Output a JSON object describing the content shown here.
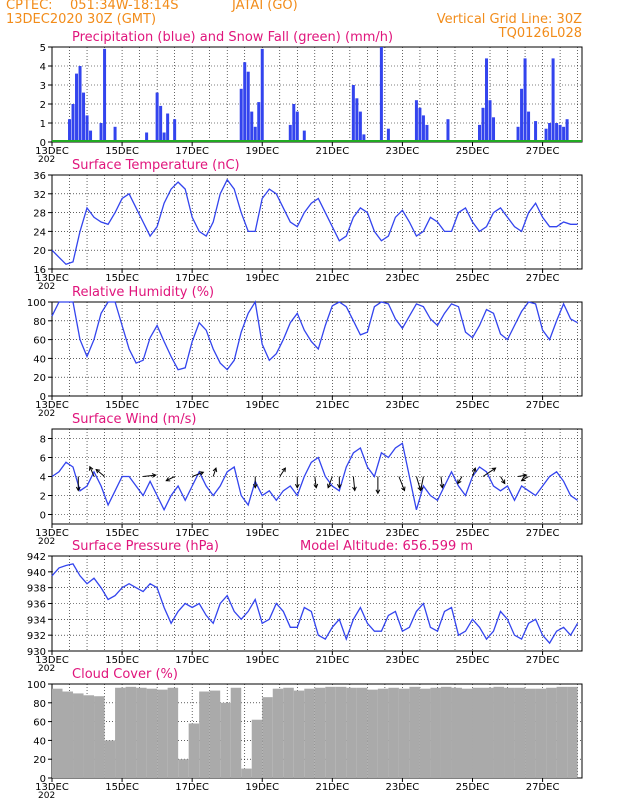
{
  "header": {
    "source": "CPTEC:",
    "coords": "051:34W-18:14S",
    "location": "JATAI (GO)",
    "date": "13DEC2020 30Z (GMT)",
    "grid_line": "Vertical Grid Line: 30Z",
    "code": "TQ0126L028",
    "year_stub": "202"
  },
  "x_ticks": [
    "13DEC",
    "15DEC",
    "17DEC",
    "19DEC",
    "21DEC",
    "23DEC",
    "25DEC",
    "27DEC"
  ],
  "x_ticks_upper": [
    "15DEC",
    "17DEC",
    "19DEC",
    "21DEC",
    "23DEC",
    "25DEC",
    "27DEC"
  ],
  "colors": {
    "series": "#3344ee",
    "snow": "#22aa22",
    "cloud": "#aaaaaa",
    "title": "#e0157c",
    "header": "#f28c1a"
  },
  "chart_data": [
    {
      "type": "bar",
      "title": "Precipitation (blue) and Snow Fall (green) (mm/h)",
      "ylim": [
        0,
        5
      ],
      "yticks": [
        "0",
        "1",
        "2",
        "3",
        "4",
        "5"
      ],
      "x_range": [
        "13DEC 00Z",
        "28DEC 03Z"
      ],
      "grid": true,
      "series": [
        {
          "name": "Precipitation",
          "color": "#3344ee",
          "x": [
            0.5,
            0.6,
            0.7,
            0.8,
            0.9,
            1.0,
            1.1,
            1.4,
            1.5,
            1.8,
            2.7,
            3.0,
            3.1,
            3.2,
            3.3,
            3.5,
            5.4,
            5.5,
            5.6,
            5.7,
            5.8,
            5.9,
            6.0,
            6.8,
            6.9,
            7.0,
            7.2,
            8.6,
            8.7,
            8.8,
            8.9,
            9.4,
            9.6,
            10.4,
            10.5,
            10.6,
            10.7,
            11.3,
            12.2,
            12.3,
            12.4,
            12.5,
            12.6,
            13.3,
            13.4,
            13.5,
            13.6,
            13.8,
            14.1,
            14.2,
            14.3,
            14.4,
            14.5,
            14.6,
            14.7
          ],
          "values": [
            1.2,
            2.0,
            3.6,
            4.0,
            2.6,
            1.4,
            0.6,
            1.0,
            4.9,
            0.8,
            0.5,
            2.6,
            1.9,
            0.5,
            1.5,
            1.2,
            2.8,
            4.2,
            3.7,
            1.6,
            0.8,
            2.1,
            4.9,
            0.9,
            2.0,
            1.6,
            0.6,
            3.0,
            2.3,
            1.6,
            0.4,
            5.0,
            0.7,
            2.2,
            1.8,
            1.4,
            0.9,
            1.2,
            0.9,
            1.8,
            4.4,
            2.2,
            1.3,
            0.8,
            2.8,
            4.4,
            1.6,
            1.1,
            0.7,
            1.0,
            4.4,
            1.0,
            0.9,
            0.8,
            1.2
          ]
        },
        {
          "name": "Snow Fall",
          "color": "#22aa22",
          "x": [],
          "values": []
        }
      ]
    },
    {
      "type": "line",
      "title": "Surface Temperature (nC)",
      "ylim": [
        16,
        36
      ],
      "yticks": [
        "16",
        "20",
        "24",
        "28",
        "32",
        "36"
      ],
      "grid": true,
      "x": [
        0,
        0.2,
        0.4,
        0.6,
        0.8,
        1.0,
        1.2,
        1.4,
        1.6,
        1.8,
        2.0,
        2.2,
        2.4,
        2.6,
        2.8,
        3.0,
        3.2,
        3.4,
        3.6,
        3.8,
        4.0,
        4.2,
        4.4,
        4.6,
        4.8,
        5.0,
        5.2,
        5.4,
        5.6,
        5.8,
        6.0,
        6.2,
        6.4,
        6.6,
        6.8,
        7.0,
        7.2,
        7.4,
        7.6,
        7.8,
        8.0,
        8.2,
        8.4,
        8.6,
        8.8,
        9.0,
        9.2,
        9.4,
        9.6,
        9.8,
        10.0,
        10.2,
        10.4,
        10.6,
        10.8,
        11.0,
        11.2,
        11.4,
        11.6,
        11.8,
        12.0,
        12.2,
        12.4,
        12.6,
        12.8,
        13.0,
        13.2,
        13.4,
        13.6,
        13.8,
        14.0,
        14.2,
        14.4,
        14.6,
        14.8,
        15.0
      ],
      "series": [
        {
          "name": "Temperature",
          "values": [
            20,
            18.5,
            17,
            17.5,
            24,
            29,
            27,
            26,
            25.5,
            28,
            31,
            32,
            29,
            26,
            23,
            25,
            30,
            33,
            34.5,
            33,
            27,
            24,
            23,
            26,
            32,
            35,
            33,
            28,
            24,
            24,
            31,
            33,
            32,
            29,
            26,
            25,
            28,
            30,
            31,
            28,
            25,
            22,
            23,
            27,
            29,
            28,
            24,
            22,
            23,
            27,
            28.5,
            26,
            23,
            24,
            27,
            26,
            24,
            24,
            28,
            29,
            26,
            24,
            25,
            28,
            29,
            27,
            25,
            24,
            28,
            30,
            27,
            25,
            25,
            26,
            25.5,
            25.5
          ]
        }
      ]
    },
    {
      "type": "line",
      "title": "Relative Humidity (%)",
      "ylim": [
        0,
        100
      ],
      "yticks": [
        "0",
        "20",
        "40",
        "60",
        "80",
        "100"
      ],
      "grid": true,
      "x": [
        0,
        0.2,
        0.4,
        0.6,
        0.8,
        1.0,
        1.2,
        1.4,
        1.6,
        1.8,
        2.0,
        2.2,
        2.4,
        2.6,
        2.8,
        3.0,
        3.2,
        3.4,
        3.6,
        3.8,
        4.0,
        4.2,
        4.4,
        4.6,
        4.8,
        5.0,
        5.2,
        5.4,
        5.6,
        5.8,
        6.0,
        6.2,
        6.4,
        6.6,
        6.8,
        7.0,
        7.2,
        7.4,
        7.6,
        7.8,
        8.0,
        8.2,
        8.4,
        8.6,
        8.8,
        9.0,
        9.2,
        9.4,
        9.6,
        9.8,
        10.0,
        10.2,
        10.4,
        10.6,
        10.8,
        11.0,
        11.2,
        11.4,
        11.6,
        11.8,
        12.0,
        12.2,
        12.4,
        12.6,
        12.8,
        13.0,
        13.2,
        13.4,
        13.6,
        13.8,
        14.0,
        14.2,
        14.4,
        14.6,
        14.8,
        15.0
      ],
      "series": [
        {
          "name": "Humidity",
          "values": [
            85,
            100,
            100,
            100,
            60,
            42,
            60,
            88,
            100,
            100,
            75,
            50,
            35,
            38,
            62,
            75,
            58,
            42,
            28,
            30,
            58,
            78,
            70,
            50,
            35,
            28,
            38,
            68,
            88,
            100,
            55,
            38,
            45,
            60,
            78,
            88,
            70,
            58,
            50,
            75,
            96,
            100,
            95,
            80,
            65,
            68,
            95,
            100,
            98,
            82,
            72,
            85,
            98,
            95,
            82,
            75,
            88,
            98,
            95,
            68,
            62,
            75,
            92,
            88,
            66,
            60,
            75,
            90,
            100,
            98,
            70,
            60,
            80,
            98,
            82,
            78
          ]
        }
      ]
    },
    {
      "type": "line",
      "title": "Surface Wind (m/s)",
      "ylim": [
        -1,
        9
      ],
      "yticks": [
        "0",
        "2",
        "4",
        "6",
        "8"
      ],
      "grid": true,
      "x": [
        0,
        0.2,
        0.4,
        0.6,
        0.8,
        1.0,
        1.2,
        1.4,
        1.6,
        1.8,
        2.0,
        2.2,
        2.4,
        2.6,
        2.8,
        3.0,
        3.2,
        3.4,
        3.6,
        3.8,
        4.0,
        4.2,
        4.4,
        4.6,
        4.8,
        5.0,
        5.2,
        5.4,
        5.6,
        5.8,
        6.0,
        6.2,
        6.4,
        6.6,
        6.8,
        7.0,
        7.2,
        7.4,
        7.6,
        7.8,
        8.0,
        8.2,
        8.4,
        8.6,
        8.8,
        9.0,
        9.2,
        9.4,
        9.6,
        9.8,
        10.0,
        10.2,
        10.4,
        10.6,
        10.8,
        11.0,
        11.2,
        11.4,
        11.6,
        11.8,
        12.0,
        12.2,
        12.4,
        12.6,
        12.8,
        13.0,
        13.2,
        13.4,
        13.6,
        13.8,
        14.0,
        14.2,
        14.4,
        14.6,
        14.8,
        15.0
      ],
      "series": [
        {
          "name": "Wind speed",
          "values": [
            4,
            4.5,
            5.5,
            5,
            2.5,
            3,
            4.5,
            3,
            1,
            2.5,
            4,
            4,
            3,
            2,
            3.5,
            2,
            0.5,
            2,
            3,
            1.5,
            3,
            4.5,
            3,
            2,
            3,
            4.5,
            5,
            2,
            1,
            3.5,
            2,
            2.5,
            1.5,
            2.5,
            3,
            2,
            4,
            5.5,
            6,
            4,
            3,
            2.5,
            5,
            6.5,
            7,
            5,
            4,
            6.5,
            6,
            7,
            7.5,
            4,
            0.5,
            3,
            2,
            1.5,
            3,
            4.5,
            3,
            2,
            4,
            5,
            4.5,
            3,
            2.5,
            3,
            1.5,
            3,
            2.5,
            2,
            3,
            4,
            4.5,
            3.5,
            2,
            1.5
          ]
        }
      ],
      "arrows": [
        {
          "x": 0.75,
          "u": 0,
          "v": -1
        },
        {
          "x": 1.2,
          "u": -0.3,
          "v": 0.7
        },
        {
          "x": 1.5,
          "u": -0.6,
          "v": 0.5
        },
        {
          "x": 2.6,
          "u": 0.9,
          "v": 0.1
        },
        {
          "x": 3.5,
          "u": -0.6,
          "v": -0.3
        },
        {
          "x": 4.0,
          "u": 0.8,
          "v": 0.3
        },
        {
          "x": 4.6,
          "u": 0.2,
          "v": 0.6
        },
        {
          "x": 5.8,
          "u": 0,
          "v": -0.8
        },
        {
          "x": 6.5,
          "u": 0.4,
          "v": 0.6
        },
        {
          "x": 7.0,
          "u": 0,
          "v": -0.8
        },
        {
          "x": 7.5,
          "u": 0.1,
          "v": -0.8
        },
        {
          "x": 8.0,
          "u": -0.3,
          "v": -0.8
        },
        {
          "x": 8.2,
          "u": 0,
          "v": -0.8
        },
        {
          "x": 8.6,
          "u": 0.1,
          "v": -1
        },
        {
          "x": 9.3,
          "u": 0,
          "v": -1.2
        },
        {
          "x": 9.9,
          "u": 0.4,
          "v": -1
        },
        {
          "x": 10.4,
          "u": 0.3,
          "v": -1
        },
        {
          "x": 10.6,
          "u": -0.2,
          "v": -1
        },
        {
          "x": 11.1,
          "u": 0.1,
          "v": -0.8
        },
        {
          "x": 11.7,
          "u": -0.3,
          "v": -0.5
        },
        {
          "x": 12.0,
          "u": 0.2,
          "v": 0.6
        },
        {
          "x": 12.3,
          "u": 0.9,
          "v": 0.6
        },
        {
          "x": 12.8,
          "u": 0.3,
          "v": -0.5
        },
        {
          "x": 13.3,
          "u": 0.6,
          "v": 0.1
        },
        {
          "x": 13.6,
          "u": -0.5,
          "v": -0.3
        }
      ]
    },
    {
      "type": "line",
      "title": "Surface Pressure (hPa)",
      "annotation": "Model Altitude: 656.599  m",
      "ylim": [
        930,
        942
      ],
      "yticks": [
        "930",
        "932",
        "934",
        "936",
        "938",
        "940",
        "942"
      ],
      "grid": true,
      "x": [
        0,
        0.2,
        0.4,
        0.6,
        0.8,
        1.0,
        1.2,
        1.4,
        1.6,
        1.8,
        2.0,
        2.2,
        2.4,
        2.6,
        2.8,
        3.0,
        3.2,
        3.4,
        3.6,
        3.8,
        4.0,
        4.2,
        4.4,
        4.6,
        4.8,
        5.0,
        5.2,
        5.4,
        5.6,
        5.8,
        6.0,
        6.2,
        6.4,
        6.6,
        6.8,
        7.0,
        7.2,
        7.4,
        7.6,
        7.8,
        8.0,
        8.2,
        8.4,
        8.6,
        8.8,
        9.0,
        9.2,
        9.4,
        9.6,
        9.8,
        10.0,
        10.2,
        10.4,
        10.6,
        10.8,
        11.0,
        11.2,
        11.4,
        11.6,
        11.8,
        12.0,
        12.2,
        12.4,
        12.6,
        12.8,
        13.0,
        13.2,
        13.4,
        13.6,
        13.8,
        14.0,
        14.2,
        14.4,
        14.6,
        14.8,
        15.0
      ],
      "series": [
        {
          "name": "Pressure",
          "values": [
            939.5,
            940.5,
            940.8,
            941,
            939.5,
            938.5,
            939.2,
            938,
            936.5,
            937,
            938,
            938.5,
            938,
            937.5,
            938.5,
            938,
            935.5,
            933.5,
            935,
            936,
            935.5,
            936,
            934.5,
            933.5,
            936,
            937,
            935,
            934,
            935,
            936.5,
            933.5,
            934,
            936,
            935,
            933,
            933,
            935.5,
            935,
            932,
            931.5,
            933,
            934,
            931.5,
            934,
            935.5,
            933.5,
            932.5,
            932.5,
            934.5,
            935,
            932.5,
            933,
            935,
            936,
            933,
            932.5,
            935,
            935.5,
            932,
            932.5,
            934,
            933,
            931.5,
            932.5,
            935,
            934,
            932,
            931.5,
            933.5,
            934,
            932,
            931,
            932.5,
            933,
            932,
            933.5
          ]
        }
      ]
    },
    {
      "type": "bar",
      "title": "Cloud Cover (%)",
      "ylim": [
        0,
        100
      ],
      "yticks": [
        "0",
        "20",
        "40",
        "60",
        "80",
        "100"
      ],
      "grid": true,
      "x": [
        0,
        0.3,
        0.6,
        0.9,
        1.2,
        1.5,
        1.8,
        2.1,
        2.4,
        2.7,
        3.0,
        3.3,
        3.6,
        3.9,
        4.2,
        4.5,
        4.8,
        5.1,
        5.4,
        5.7,
        6.0,
        6.3,
        6.6,
        6.9,
        7.2,
        7.5,
        7.8,
        8.1,
        8.4,
        8.7,
        9.0,
        9.3,
        9.6,
        9.9,
        10.2,
        10.5,
        10.8,
        11.1,
        11.4,
        11.7,
        12.0,
        12.3,
        12.6,
        12.9,
        13.2,
        13.5,
        13.8,
        14.1,
        14.4,
        14.7
      ],
      "series": [
        {
          "name": "Cloud Cover",
          "values": [
            95,
            92,
            90,
            88,
            87,
            40,
            96,
            97,
            96,
            95,
            94,
            96,
            20,
            58,
            92,
            93,
            80,
            96,
            10,
            62,
            86,
            95,
            96,
            93,
            95,
            96,
            97,
            97,
            96,
            96,
            94,
            95,
            96,
            95,
            97,
            95,
            96,
            97,
            96,
            95,
            96,
            96,
            97,
            96,
            96,
            95,
            95,
            96,
            97,
            97
          ]
        }
      ]
    }
  ]
}
